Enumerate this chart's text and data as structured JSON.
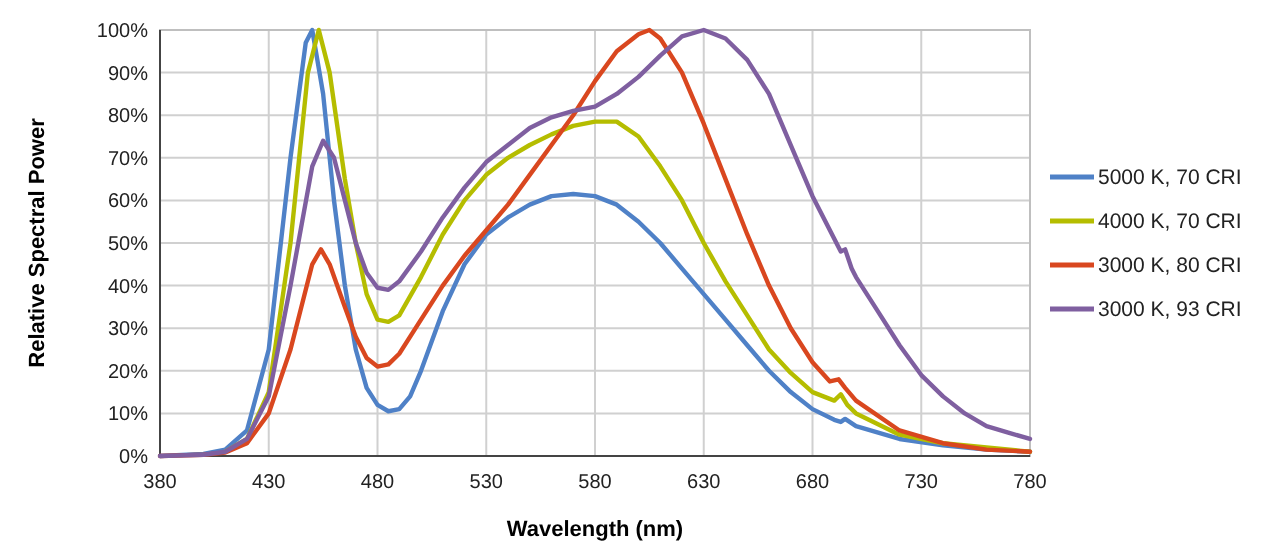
{
  "chart_data": {
    "type": "line",
    "xlabel": "Wavelength (nm)",
    "ylabel": "Relative Spectral Power",
    "xlim": [
      380,
      780
    ],
    "xticks": [
      380,
      430,
      480,
      530,
      580,
      630,
      680,
      730,
      780
    ],
    "ylim": [
      0,
      100
    ],
    "yticks": [
      {
        "value": 0,
        "label": "0%"
      },
      {
        "value": 10,
        "label": "10%"
      },
      {
        "value": 20,
        "label": "20%"
      },
      {
        "value": 30,
        "label": "30%"
      },
      {
        "value": 40,
        "label": "40%"
      },
      {
        "value": 50,
        "label": "50%"
      },
      {
        "value": 60,
        "label": "60%"
      },
      {
        "value": 70,
        "label": "70%"
      },
      {
        "value": 80,
        "label": "80%"
      },
      {
        "value": 90,
        "label": "90%"
      },
      {
        "value": 100,
        "label": "100%"
      }
    ],
    "grid": true,
    "legend": "right",
    "marker": "none",
    "line_style": "solid",
    "series": [
      {
        "name": "5000 K, 70 CRI",
        "color": "#4f81c7",
        "x": [
          380,
          400,
          410,
          420,
          430,
          440,
          447,
          450,
          455,
          460,
          465,
          470,
          475,
          480,
          485,
          490,
          495,
          500,
          510,
          520,
          530,
          540,
          550,
          560,
          570,
          580,
          590,
          600,
          610,
          620,
          630,
          640,
          650,
          660,
          670,
          680,
          690,
          693,
          695,
          700,
          720,
          740,
          760,
          780
        ],
        "values": [
          0,
          0.5,
          1.5,
          6,
          25,
          70,
          97,
          100,
          85,
          60,
          40,
          25,
          16,
          12,
          10.5,
          11,
          14,
          20,
          34,
          45,
          52,
          56,
          59,
          61,
          61.5,
          61,
          59,
          55,
          50,
          44,
          38,
          32,
          26,
          20,
          15,
          11,
          8.5,
          8,
          8.7,
          7,
          4,
          2.5,
          1.5,
          1
        ]
      },
      {
        "name": "4000 K, 70 CRI",
        "color": "#b5bd00",
        "x": [
          410,
          420,
          430,
          440,
          448,
          453,
          458,
          465,
          470,
          475,
          480,
          485,
          490,
          500,
          510,
          520,
          530,
          540,
          550,
          560,
          570,
          580,
          590,
          600,
          610,
          620,
          630,
          640,
          650,
          660,
          670,
          680,
          690,
          693,
          696,
          700,
          720,
          740,
          760,
          780
        ],
        "values": [
          1,
          4,
          15,
          50,
          90,
          100,
          90,
          65,
          50,
          38,
          32,
          31.5,
          33,
          42,
          52,
          60,
          66,
          70,
          73,
          75.5,
          77.5,
          78.5,
          78.5,
          75,
          68,
          60,
          50,
          41,
          33,
          25,
          19.5,
          15,
          13,
          14.5,
          12,
          10,
          5,
          3,
          2,
          1
        ]
      },
      {
        "name": "3000 K, 80 CRI",
        "color": "#d9471f",
        "x": [
          380,
          400,
          410,
          420,
          430,
          440,
          450,
          454,
          458,
          465,
          470,
          475,
          480,
          485,
          490,
          500,
          510,
          520,
          530,
          540,
          550,
          560,
          570,
          580,
          590,
          600,
          605,
          610,
          620,
          630,
          640,
          650,
          660,
          670,
          680,
          688,
          692,
          695,
          700,
          720,
          740,
          760,
          780
        ],
        "values": [
          0,
          0.3,
          0.8,
          3,
          10,
          25,
          45,
          48.5,
          45,
          35,
          28,
          23,
          21,
          21.5,
          24,
          32,
          40,
          47,
          53,
          59,
          66,
          73,
          80,
          88,
          95,
          99,
          100,
          98,
          90,
          78,
          65,
          52,
          40,
          30,
          22,
          17.5,
          18,
          16,
          13,
          6,
          3,
          1.5,
          1
        ]
      },
      {
        "name": "3000 K, 93 CRI",
        "color": "#7f5fa0",
        "x": [
          380,
          400,
          410,
          420,
          430,
          440,
          450,
          455,
          460,
          465,
          470,
          475,
          480,
          485,
          490,
          500,
          510,
          520,
          530,
          540,
          550,
          560,
          570,
          580,
          590,
          600,
          610,
          620,
          630,
          640,
          650,
          660,
          670,
          680,
          690,
          693,
          695,
          698,
          700,
          710,
          720,
          730,
          740,
          750,
          760,
          770,
          780
        ],
        "values": [
          0,
          0.3,
          1,
          4,
          14,
          40,
          68,
          74,
          70,
          60,
          50,
          43,
          39.5,
          39,
          41,
          48,
          56,
          63,
          69,
          73,
          77,
          79.5,
          81,
          82,
          85,
          89,
          94,
          98.5,
          100,
          98,
          93,
          85,
          73,
          61,
          51,
          48,
          48.5,
          44,
          42,
          34,
          26,
          19,
          14,
          10,
          7,
          5.5,
          4
        ]
      }
    ]
  }
}
